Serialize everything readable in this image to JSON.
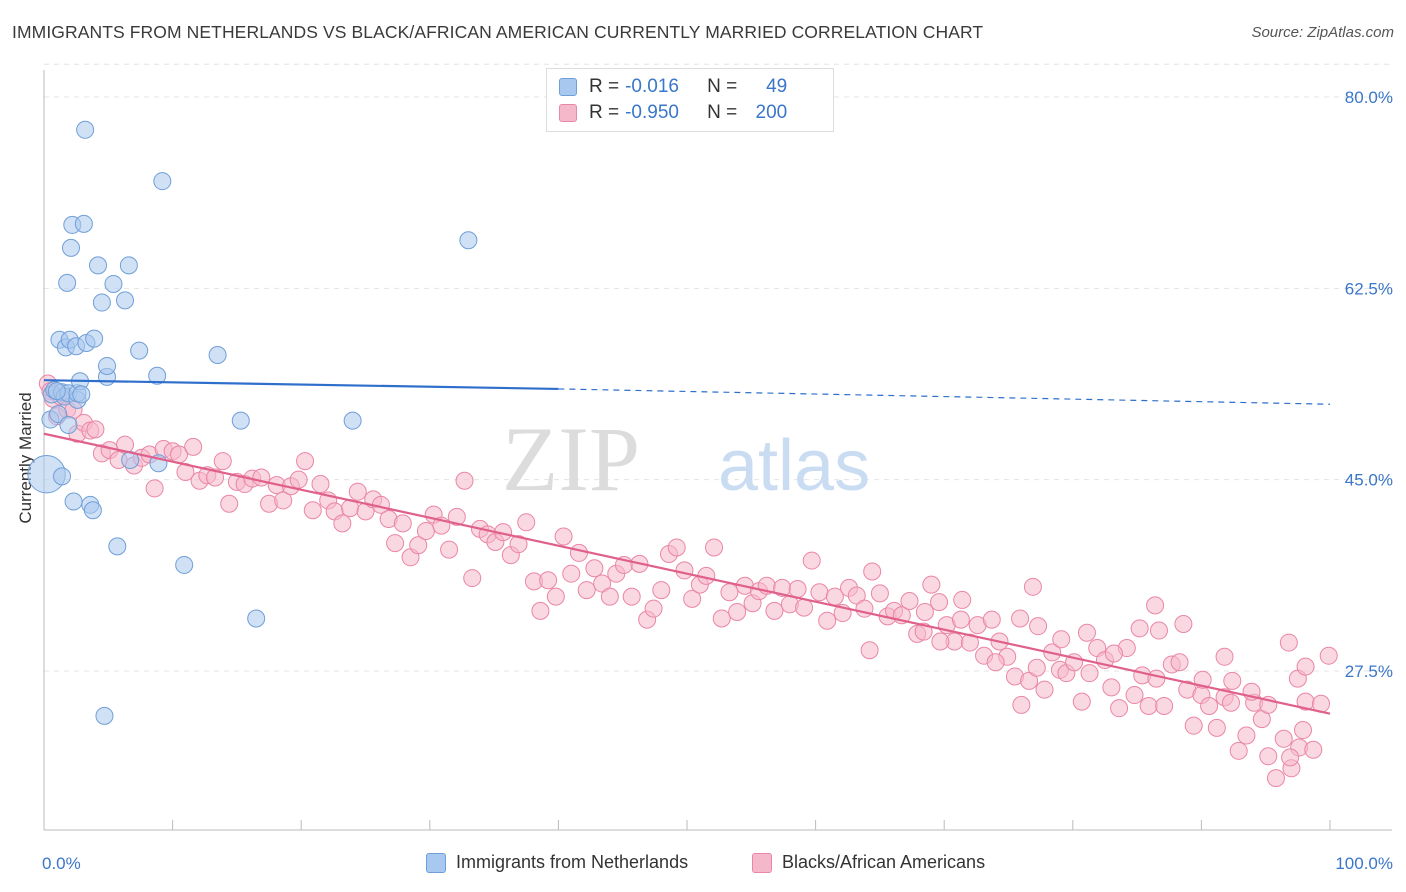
{
  "header": {
    "title": "IMMIGRANTS FROM NETHERLANDS VS BLACK/AFRICAN AMERICAN CURRENTLY MARRIED CORRELATION CHART",
    "source": "Source: ZipAtlas.com"
  },
  "watermark": {
    "zip": "ZIP",
    "atlas": "atlas"
  },
  "legend_top": {
    "rows": [
      {
        "r_label": "R =",
        "r_value": "-0.016",
        "n_label": "N =",
        "n_value": "49"
      },
      {
        "r_label": "R =",
        "r_value": "-0.950",
        "n_label": "N =",
        "n_value": "200"
      }
    ]
  },
  "legend_bottom": {
    "items": [
      {
        "label": "Immigrants from Netherlands"
      },
      {
        "label": "Blacks/African Americans"
      }
    ]
  },
  "colors": {
    "blue_fill": "#a9c8ef",
    "blue_stroke": "#6f9fd8",
    "blue_line": "#2f6fcc",
    "pink_fill": "#f5b8cb",
    "pink_stroke": "#ea86a6",
    "pink_line": "#e0608c",
    "tick_text": "#3a76c9",
    "grid": "#e4e4e4"
  },
  "chart_data": {
    "type": "scatter",
    "title": "IMMIGRANTS FROM NETHERLANDS VS BLACK/AFRICAN AMERICAN CURRENTLY MARRIED CORRELATION CHART",
    "xlabel": "",
    "ylabel": "Currently Married",
    "xlim": [
      0,
      100
    ],
    "ylim": [
      10,
      83
    ],
    "x_tick_labels": [
      "0.0%",
      "100.0%"
    ],
    "y_ticks": [
      80.0,
      62.5,
      45.0,
      27.5
    ],
    "y_tick_labels": [
      "80.0%",
      "62.5%",
      "45.0%",
      "27.5%"
    ],
    "grid": true,
    "legend_position": "top-center",
    "series": [
      {
        "name": "Immigrants from Netherlands",
        "r": -0.016,
        "n": 49,
        "trend": {
          "x0": 0,
          "y0": 54.1,
          "x1": 40,
          "y1": 53.3,
          "dashed_to_x": 100,
          "dashed_to_y": 51.9
        },
        "points": [
          [
            0.2,
            45.5,
            2.2
          ],
          [
            0.5,
            50.5,
            1
          ],
          [
            0.6,
            52.8,
            1
          ],
          [
            0.8,
            53.2,
            1
          ],
          [
            1.1,
            51.0,
            1
          ],
          [
            1.2,
            57.8,
            1
          ],
          [
            1.4,
            53.0,
            1
          ],
          [
            1.6,
            52.6,
            1
          ],
          [
            1.7,
            57.1,
            1
          ],
          [
            1.8,
            63.0,
            1
          ],
          [
            1.9,
            52.9,
            1
          ],
          [
            1.4,
            45.3,
            1
          ],
          [
            1.9,
            50.0,
            1
          ],
          [
            2.0,
            57.8,
            1
          ],
          [
            2.1,
            66.2,
            1
          ],
          [
            2.2,
            68.3,
            1
          ],
          [
            2.3,
            43.0,
            1
          ],
          [
            2.5,
            57.2,
            1
          ],
          [
            2.6,
            52.3,
            1
          ],
          [
            2.6,
            52.9,
            1
          ],
          [
            2.8,
            54.0,
            1
          ],
          [
            3.1,
            68.4,
            1
          ],
          [
            3.2,
            77.0,
            1
          ],
          [
            3.3,
            57.5,
            1
          ],
          [
            3.6,
            42.7,
            1
          ],
          [
            3.8,
            42.2,
            1
          ],
          [
            3.9,
            57.9,
            1
          ],
          [
            4.2,
            64.6,
            1
          ],
          [
            4.5,
            61.2,
            1
          ],
          [
            4.7,
            23.4,
            1
          ],
          [
            4.9,
            54.4,
            1
          ],
          [
            4.9,
            55.4,
            1
          ],
          [
            5.4,
            62.9,
            1
          ],
          [
            5.7,
            38.9,
            1
          ],
          [
            6.3,
            61.4,
            1
          ],
          [
            6.6,
            64.6,
            1
          ],
          [
            6.7,
            46.8,
            1
          ],
          [
            7.4,
            56.8,
            1
          ],
          [
            8.8,
            54.5,
            1
          ],
          [
            8.9,
            46.5,
            1
          ],
          [
            9.2,
            72.3,
            1
          ],
          [
            10.9,
            37.2,
            1
          ],
          [
            13.5,
            56.4,
            1
          ],
          [
            15.3,
            50.4,
            1
          ],
          [
            16.5,
            32.3,
            1
          ],
          [
            24.0,
            50.4,
            1
          ],
          [
            33.0,
            66.9,
            1
          ],
          [
            1.0,
            53.1,
            1
          ],
          [
            2.9,
            52.8,
            1
          ]
        ]
      },
      {
        "name": "Blacks/African Americans",
        "r": -0.95,
        "n": 200,
        "trend": {
          "x0": 0,
          "y0": 49.2,
          "x1": 100,
          "y1": 23.6
        },
        "points": [
          [
            0.3,
            53.8
          ],
          [
            0.5,
            53.1
          ],
          [
            0.7,
            52.4
          ],
          [
            1.0,
            50.8
          ],
          [
            1.3,
            52.6
          ],
          [
            1.8,
            51.4
          ],
          [
            2.3,
            51.4
          ],
          [
            2.6,
            49.2
          ],
          [
            3.1,
            50.2
          ],
          [
            3.6,
            49.5
          ],
          [
            4.0,
            49.6
          ],
          [
            4.5,
            47.4
          ],
          [
            5.1,
            47.7
          ],
          [
            5.8,
            46.8
          ],
          [
            6.3,
            48.2
          ],
          [
            7.0,
            46.3
          ],
          [
            7.6,
            47.0
          ],
          [
            8.2,
            47.3
          ],
          [
            8.6,
            44.2
          ],
          [
            9.3,
            47.8
          ],
          [
            10.0,
            47.6
          ],
          [
            10.5,
            47.3
          ],
          [
            11.0,
            45.7
          ],
          [
            11.6,
            48.0
          ],
          [
            12.1,
            44.9
          ],
          [
            12.7,
            45.4
          ],
          [
            13.3,
            45.2
          ],
          [
            13.9,
            46.7
          ],
          [
            14.4,
            42.8
          ],
          [
            15.0,
            44.8
          ],
          [
            15.6,
            44.6
          ],
          [
            16.2,
            45.1
          ],
          [
            16.9,
            45.2
          ],
          [
            17.5,
            42.8
          ],
          [
            18.1,
            44.5
          ],
          [
            18.6,
            43.1
          ],
          [
            19.2,
            44.4
          ],
          [
            19.8,
            45.0
          ],
          [
            20.3,
            46.7
          ],
          [
            20.9,
            42.2
          ],
          [
            21.5,
            44.6
          ],
          [
            22.1,
            43.1
          ],
          [
            22.6,
            42.1
          ],
          [
            23.2,
            41.0
          ],
          [
            23.8,
            42.4
          ],
          [
            24.4,
            43.9
          ],
          [
            25.0,
            42.1
          ],
          [
            25.6,
            43.2
          ],
          [
            26.2,
            42.7
          ],
          [
            26.8,
            41.4
          ],
          [
            27.3,
            39.2
          ],
          [
            27.9,
            41.0
          ],
          [
            28.5,
            37.9
          ],
          [
            29.1,
            39.0
          ],
          [
            29.7,
            40.3
          ],
          [
            30.3,
            41.8
          ],
          [
            30.9,
            40.8
          ],
          [
            31.5,
            38.6
          ],
          [
            32.1,
            41.6
          ],
          [
            32.7,
            44.9
          ],
          [
            33.3,
            36.0
          ],
          [
            33.9,
            40.5
          ],
          [
            34.5,
            40.0
          ],
          [
            35.1,
            39.3
          ],
          [
            35.7,
            40.2
          ],
          [
            36.3,
            38.1
          ],
          [
            36.9,
            39.1
          ],
          [
            37.5,
            41.1
          ],
          [
            38.1,
            35.7
          ],
          [
            38.6,
            33.0
          ],
          [
            39.2,
            35.8
          ],
          [
            39.8,
            34.3
          ],
          [
            40.4,
            39.8
          ],
          [
            41.0,
            36.4
          ],
          [
            41.6,
            38.3
          ],
          [
            42.2,
            34.9
          ],
          [
            42.8,
            36.9
          ],
          [
            43.4,
            35.5
          ],
          [
            44.0,
            34.3
          ],
          [
            44.5,
            36.4
          ],
          [
            45.1,
            37.2
          ],
          [
            45.7,
            34.3
          ],
          [
            46.3,
            37.3
          ],
          [
            46.9,
            32.2
          ],
          [
            47.4,
            33.2
          ],
          [
            48.0,
            34.9
          ],
          [
            48.6,
            38.2
          ],
          [
            49.2,
            38.8
          ],
          [
            49.8,
            36.7
          ],
          [
            50.4,
            34.1
          ],
          [
            51.0,
            35.4
          ],
          [
            51.5,
            36.2
          ],
          [
            52.1,
            38.8
          ],
          [
            52.7,
            32.3
          ],
          [
            53.3,
            34.7
          ],
          [
            53.9,
            32.9
          ],
          [
            54.5,
            35.3
          ],
          [
            55.1,
            33.7
          ],
          [
            55.6,
            34.8
          ],
          [
            56.2,
            35.3
          ],
          [
            56.8,
            33.0
          ],
          [
            57.4,
            35.1
          ],
          [
            58.0,
            33.6
          ],
          [
            58.6,
            35.0
          ],
          [
            59.1,
            33.3
          ],
          [
            59.7,
            37.6
          ],
          [
            60.3,
            34.7
          ],
          [
            60.9,
            32.1
          ],
          [
            61.5,
            34.3
          ],
          [
            62.1,
            32.8
          ],
          [
            62.6,
            35.1
          ],
          [
            63.2,
            34.4
          ],
          [
            63.8,
            33.2
          ],
          [
            64.4,
            36.6
          ],
          [
            65.0,
            34.6
          ],
          [
            65.6,
            32.5
          ],
          [
            66.1,
            33.0
          ],
          [
            66.7,
            32.6
          ],
          [
            67.3,
            33.9
          ],
          [
            67.9,
            30.9
          ],
          [
            68.5,
            32.9
          ],
          [
            69.0,
            35.4
          ],
          [
            69.6,
            33.8
          ],
          [
            70.2,
            31.7
          ],
          [
            70.8,
            30.2
          ],
          [
            71.4,
            34.0
          ],
          [
            72.0,
            30.1
          ],
          [
            72.6,
            31.7
          ],
          [
            73.1,
            28.9
          ],
          [
            73.7,
            32.2
          ],
          [
            74.3,
            30.2
          ],
          [
            74.9,
            28.8
          ],
          [
            75.5,
            27.0
          ],
          [
            76.0,
            24.4
          ],
          [
            76.6,
            26.6
          ],
          [
            77.2,
            27.8
          ],
          [
            77.8,
            25.8
          ],
          [
            78.4,
            29.2
          ],
          [
            79.0,
            27.6
          ],
          [
            79.5,
            27.3
          ],
          [
            80.1,
            28.3
          ],
          [
            80.7,
            24.7
          ],
          [
            81.3,
            27.3
          ],
          [
            81.9,
            29.6
          ],
          [
            82.5,
            28.5
          ],
          [
            83.0,
            26.0
          ],
          [
            83.6,
            24.1
          ],
          [
            84.2,
            29.6
          ],
          [
            84.8,
            25.3
          ],
          [
            85.4,
            27.1
          ],
          [
            85.9,
            24.3
          ],
          [
            86.5,
            26.8
          ],
          [
            87.1,
            24.3
          ],
          [
            87.7,
            28.1
          ],
          [
            88.3,
            28.3
          ],
          [
            88.9,
            25.8
          ],
          [
            89.4,
            22.5
          ],
          [
            90.0,
            25.3
          ],
          [
            90.6,
            24.3
          ],
          [
            91.2,
            22.3
          ],
          [
            91.8,
            25.1
          ],
          [
            92.3,
            24.6
          ],
          [
            92.9,
            20.2
          ],
          [
            93.5,
            21.6
          ],
          [
            94.1,
            24.6
          ],
          [
            94.7,
            23.1
          ],
          [
            95.2,
            19.7
          ],
          [
            95.8,
            17.7
          ],
          [
            96.4,
            21.3
          ],
          [
            97.0,
            18.6
          ],
          [
            97.6,
            20.5
          ],
          [
            98.1,
            24.7
          ],
          [
            98.7,
            20.3
          ],
          [
            99.3,
            24.5
          ],
          [
            99.9,
            28.9
          ],
          [
            86.7,
            31.2
          ],
          [
            88.6,
            31.8
          ],
          [
            91.8,
            28.8
          ],
          [
            93.9,
            25.6
          ],
          [
            96.9,
            19.6
          ],
          [
            97.5,
            26.8
          ],
          [
            98.1,
            27.9
          ],
          [
            74.0,
            28.3
          ],
          [
            77.3,
            31.6
          ],
          [
            79.1,
            30.4
          ],
          [
            81.1,
            31.0
          ],
          [
            83.2,
            29.1
          ],
          [
            85.2,
            31.4
          ],
          [
            86.4,
            33.5
          ],
          [
            90.1,
            26.7
          ],
          [
            92.4,
            26.6
          ],
          [
            95.2,
            24.4
          ],
          [
            96.8,
            30.1
          ],
          [
            97.9,
            22.1
          ],
          [
            76.9,
            35.2
          ],
          [
            75.9,
            32.3
          ],
          [
            71.3,
            32.2
          ],
          [
            69.7,
            30.2
          ],
          [
            68.4,
            31.1
          ],
          [
            64.2,
            29.4
          ]
        ]
      }
    ]
  }
}
